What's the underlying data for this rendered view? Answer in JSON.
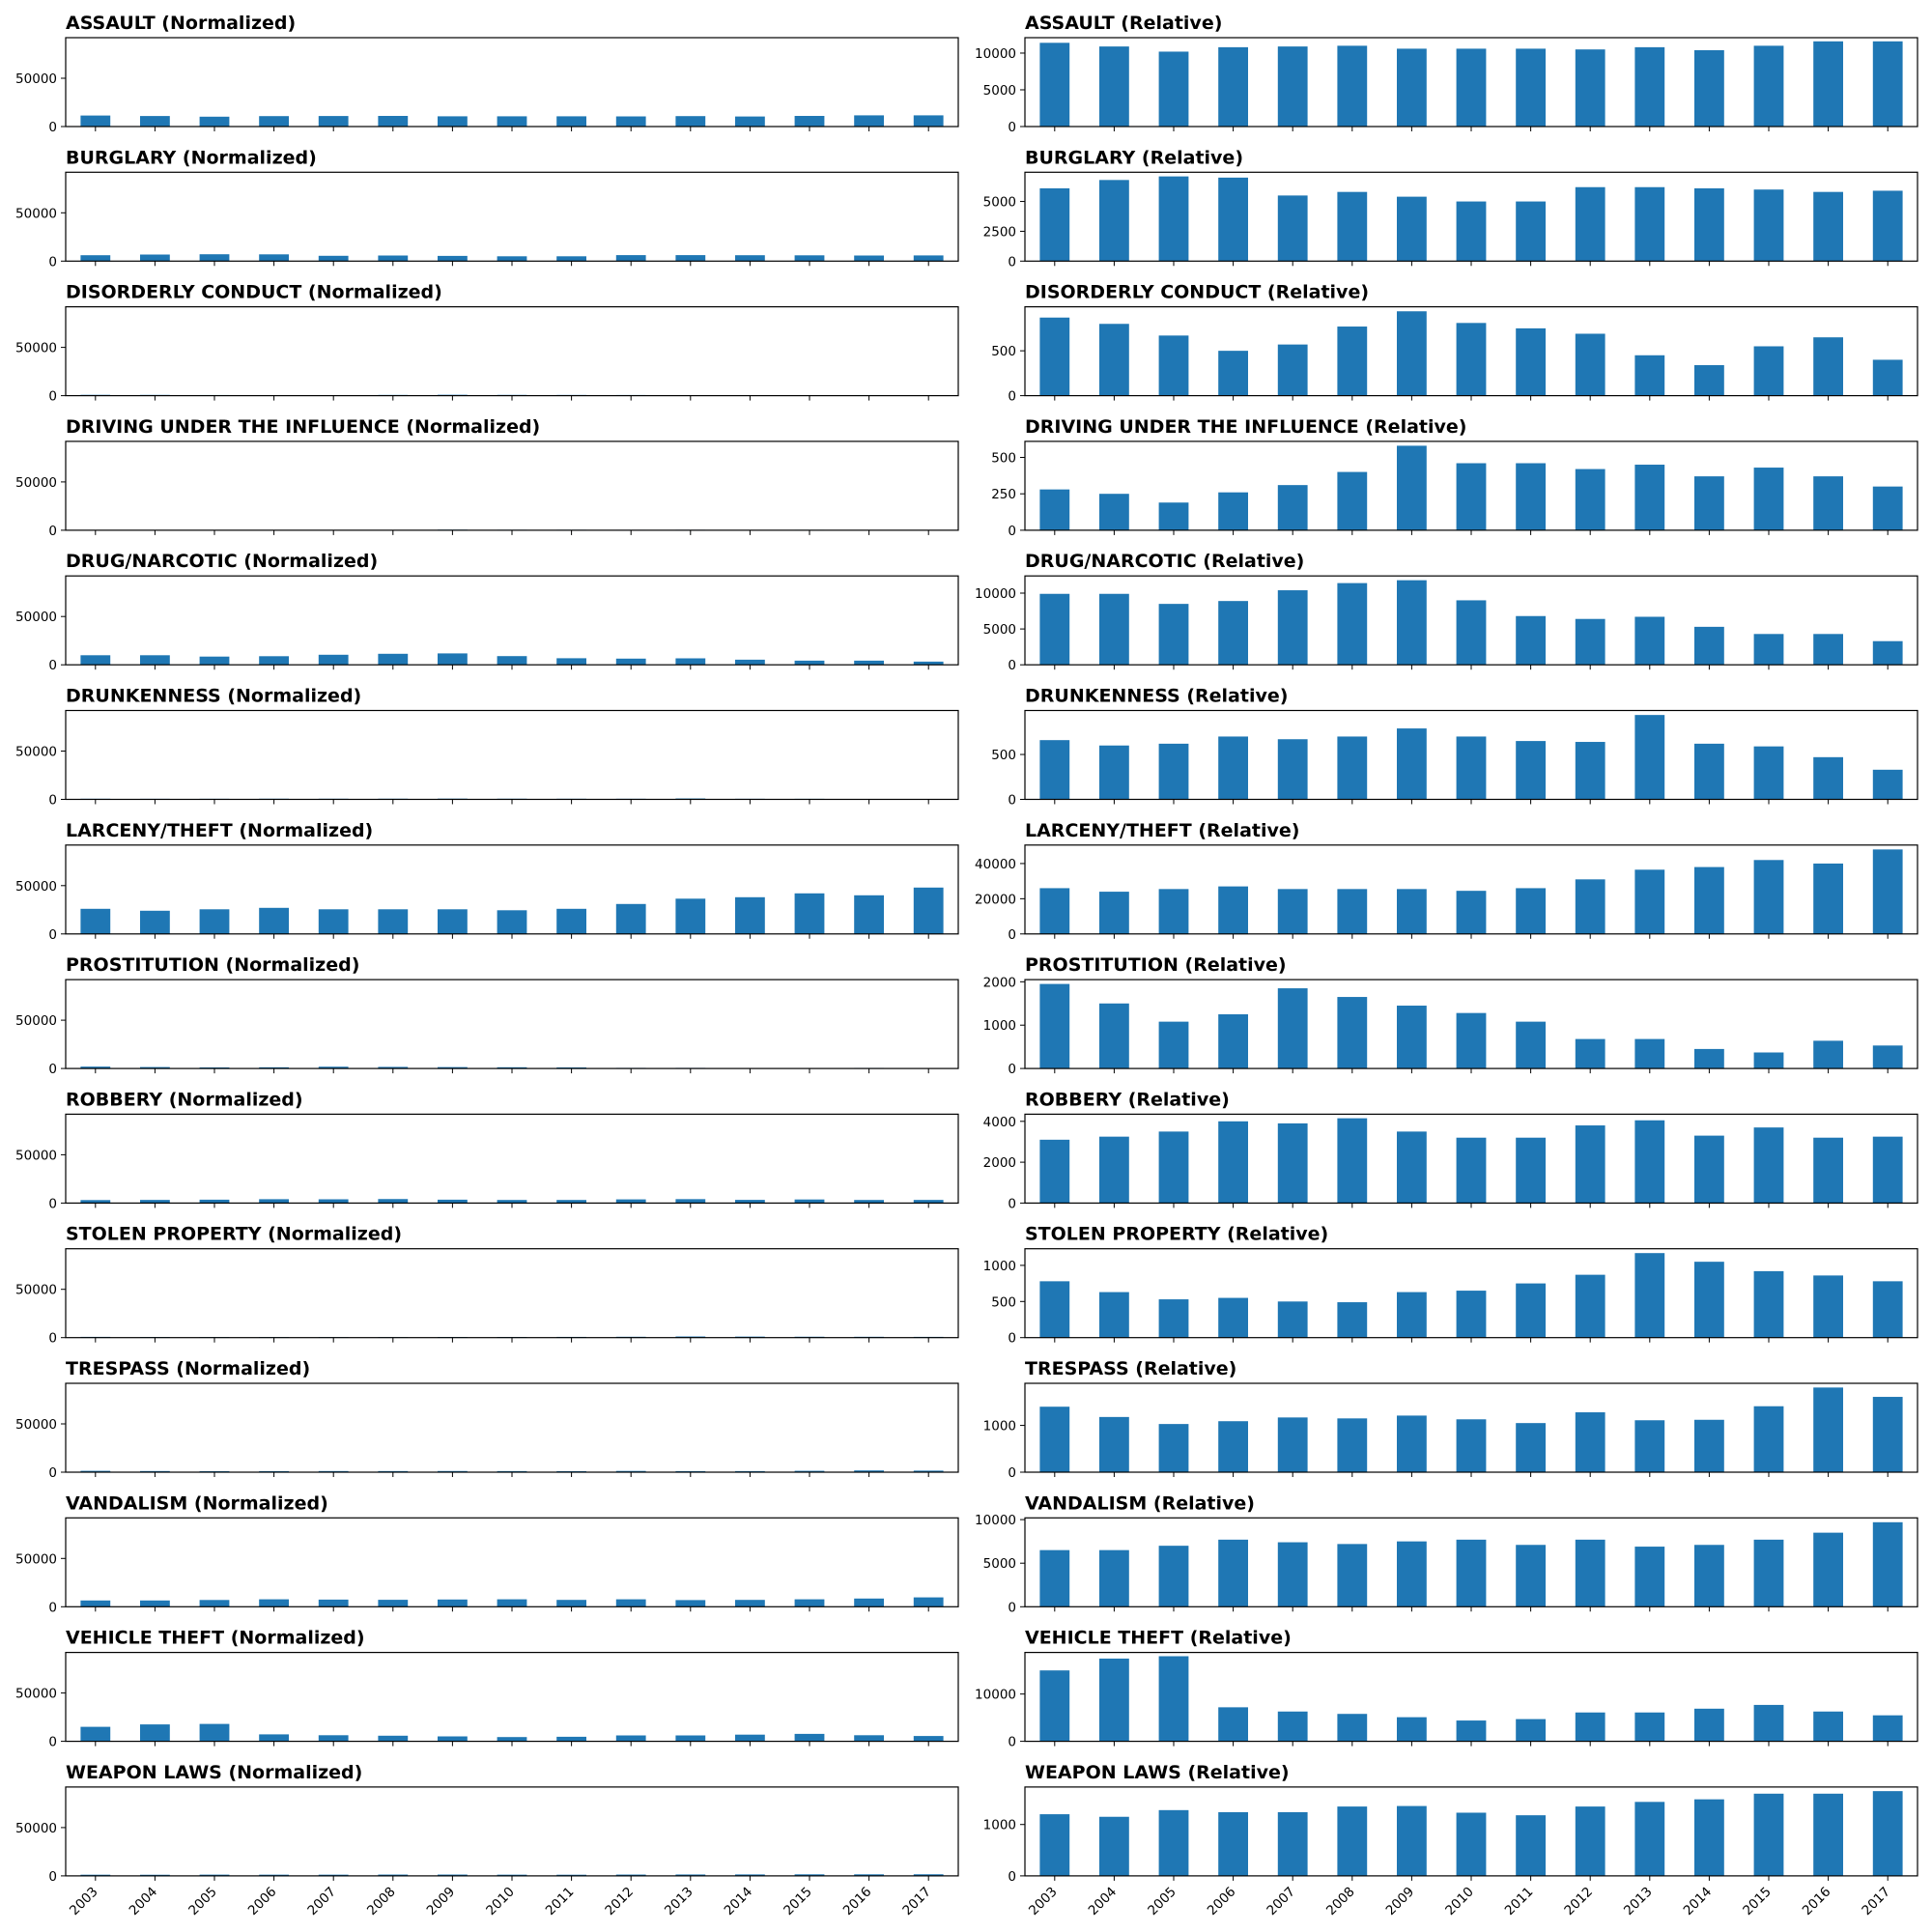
{
  "years": [
    "2003",
    "2004",
    "2005",
    "2006",
    "2007",
    "2008",
    "2009",
    "2010",
    "2011",
    "2012",
    "2013",
    "2014",
    "2015",
    "2016",
    "2017"
  ],
  "bar_color": "#1f77b4",
  "chart_data": [
    {
      "type": "bar",
      "title": "ASSAULT (Normalized)",
      "category": "ASSAULT",
      "mode": "normalized",
      "ylim": [
        0,
        92000
      ],
      "yticks": [
        0,
        50000
      ],
      "values": [
        11400,
        10900,
        10200,
        10800,
        10900,
        11000,
        10600,
        10600,
        10600,
        10500,
        10800,
        10400,
        11000,
        11600,
        11600
      ]
    },
    {
      "type": "bar",
      "title": "ASSAULT (Relative)",
      "category": "ASSAULT",
      "mode": "relative",
      "ylim": [
        0,
        12100
      ],
      "yticks": [
        0,
        5000,
        10000
      ],
      "values": [
        11400,
        10900,
        10200,
        10800,
        10900,
        11000,
        10600,
        10600,
        10600,
        10500,
        10800,
        10400,
        11000,
        11600,
        11600
      ]
    },
    {
      "type": "bar",
      "title": "BURGLARY (Normalized)",
      "category": "BURGLARY",
      "mode": "normalized",
      "ylim": [
        0,
        92000
      ],
      "yticks": [
        0,
        50000
      ],
      "values": [
        6100,
        6800,
        7100,
        7000,
        5500,
        5800,
        5400,
        5000,
        5000,
        6200,
        6200,
        6100,
        6000,
        5800,
        5900
      ]
    },
    {
      "type": "bar",
      "title": "BURGLARY (Relative)",
      "category": "BURGLARY",
      "mode": "relative",
      "ylim": [
        0,
        7450
      ],
      "yticks": [
        0,
        2500,
        5000
      ],
      "values": [
        6100,
        6800,
        7100,
        7000,
        5500,
        5800,
        5400,
        5000,
        5000,
        6200,
        6200,
        6100,
        6000,
        5800,
        5900
      ]
    },
    {
      "type": "bar",
      "title": "DISORDERLY CONDUCT (Normalized)",
      "category": "DISORDERLY CONDUCT",
      "mode": "normalized",
      "ylim": [
        0,
        92000
      ],
      "yticks": [
        0,
        50000
      ],
      "values": [
        870,
        800,
        670,
        500,
        570,
        770,
        940,
        810,
        750,
        690,
        450,
        340,
        550,
        650,
        400
      ]
    },
    {
      "type": "bar",
      "title": "DISORDERLY CONDUCT (Relative)",
      "category": "DISORDERLY CONDUCT",
      "mode": "relative",
      "ylim": [
        0,
        990
      ],
      "yticks": [
        0,
        500
      ],
      "values": [
        870,
        800,
        670,
        500,
        570,
        770,
        940,
        810,
        750,
        690,
        450,
        340,
        550,
        650,
        400
      ]
    },
    {
      "type": "bar",
      "title": "DRIVING UNDER THE INFLUENCE (Normalized)",
      "category": "DRIVING UNDER THE INFLUENCE",
      "mode": "normalized",
      "ylim": [
        0,
        92000
      ],
      "yticks": [
        0,
        50000
      ],
      "values": [
        280,
        250,
        190,
        260,
        310,
        400,
        580,
        460,
        460,
        420,
        450,
        370,
        430,
        370,
        300
      ]
    },
    {
      "type": "bar",
      "title": "DRIVING UNDER THE INFLUENCE (Relative)",
      "category": "DRIVING UNDER THE INFLUENCE",
      "mode": "relative",
      "ylim": [
        0,
        610
      ],
      "yticks": [
        0,
        250,
        500
      ],
      "values": [
        280,
        250,
        190,
        260,
        310,
        400,
        580,
        460,
        460,
        420,
        450,
        370,
        430,
        370,
        300
      ]
    },
    {
      "type": "bar",
      "title": "DRUG/NARCOTIC (Normalized)",
      "category": "DRUG/NARCOTIC",
      "mode": "normalized",
      "ylim": [
        0,
        92000
      ],
      "yticks": [
        0,
        50000
      ],
      "values": [
        9900,
        9900,
        8500,
        8900,
        10400,
        11400,
        11800,
        9000,
        6800,
        6400,
        6700,
        5300,
        4300,
        4300,
        3300
      ]
    },
    {
      "type": "bar",
      "title": "DRUG/NARCOTIC (Relative)",
      "category": "DRUG/NARCOTIC",
      "mode": "relative",
      "ylim": [
        0,
        12400
      ],
      "yticks": [
        0,
        5000,
        10000
      ],
      "values": [
        9900,
        9900,
        8500,
        8900,
        10400,
        11400,
        11800,
        9000,
        6800,
        6400,
        6700,
        5300,
        4300,
        4300,
        3300
      ]
    },
    {
      "type": "bar",
      "title": "DRUNKENNESS (Normalized)",
      "category": "DRUNKENNESS",
      "mode": "normalized",
      "ylim": [
        0,
        92000
      ],
      "yticks": [
        0,
        50000
      ],
      "values": [
        660,
        600,
        620,
        700,
        670,
        700,
        790,
        700,
        650,
        640,
        940,
        620,
        590,
        470,
        330
      ]
    },
    {
      "type": "bar",
      "title": "DRUNKENNESS (Relative)",
      "category": "DRUNKENNESS",
      "mode": "relative",
      "ylim": [
        0,
        990
      ],
      "yticks": [
        0,
        500
      ],
      "values": [
        660,
        600,
        620,
        700,
        670,
        700,
        790,
        700,
        650,
        640,
        940,
        620,
        590,
        470,
        330
      ]
    },
    {
      "type": "bar",
      "title": "LARCENY/THEFT (Normalized)",
      "category": "LARCENY/THEFT",
      "mode": "normalized",
      "ylim": [
        0,
        92000
      ],
      "yticks": [
        0,
        50000
      ],
      "values": [
        26000,
        24000,
        25500,
        27000,
        25500,
        25500,
        25500,
        24500,
        26000,
        31000,
        36500,
        38000,
        42000,
        40000,
        48000
      ]
    },
    {
      "type": "bar",
      "title": "LARCENY/THEFT (Relative)",
      "category": "LARCENY/THEFT",
      "mode": "relative",
      "ylim": [
        0,
        50500
      ],
      "yticks": [
        0,
        20000,
        40000
      ],
      "values": [
        26000,
        24000,
        25500,
        27000,
        25500,
        25500,
        25500,
        24500,
        26000,
        31000,
        36500,
        38000,
        42000,
        40000,
        48000
      ]
    },
    {
      "type": "bar",
      "title": "PROSTITUTION (Normalized)",
      "category": "PROSTITUTION",
      "mode": "normalized",
      "ylim": [
        0,
        92000
      ],
      "yticks": [
        0,
        50000
      ],
      "values": [
        1950,
        1500,
        1080,
        1250,
        1850,
        1650,
        1450,
        1280,
        1080,
        680,
        680,
        450,
        370,
        640,
        530
      ]
    },
    {
      "type": "bar",
      "title": "PROSTITUTION (Relative)",
      "category": "PROSTITUTION",
      "mode": "relative",
      "ylim": [
        0,
        2050
      ],
      "yticks": [
        0,
        1000,
        2000
      ],
      "values": [
        1950,
        1500,
        1080,
        1250,
        1850,
        1650,
        1450,
        1280,
        1080,
        680,
        680,
        450,
        370,
        640,
        530
      ]
    },
    {
      "type": "bar",
      "title": "ROBBERY (Normalized)",
      "category": "ROBBERY",
      "mode": "normalized",
      "ylim": [
        0,
        92000
      ],
      "yticks": [
        0,
        50000
      ],
      "values": [
        3100,
        3250,
        3500,
        4000,
        3900,
        4150,
        3500,
        3200,
        3200,
        3800,
        4050,
        3300,
        3700,
        3200,
        3250
      ]
    },
    {
      "type": "bar",
      "title": "ROBBERY (Relative)",
      "category": "ROBBERY",
      "mode": "relative",
      "ylim": [
        0,
        4350
      ],
      "yticks": [
        0,
        2000,
        4000
      ],
      "values": [
        3100,
        3250,
        3500,
        4000,
        3900,
        4150,
        3500,
        3200,
        3200,
        3800,
        4050,
        3300,
        3700,
        3200,
        3250
      ]
    },
    {
      "type": "bar",
      "title": "STOLEN PROPERTY (Normalized)",
      "category": "STOLEN PROPERTY",
      "mode": "normalized",
      "ylim": [
        0,
        92000
      ],
      "yticks": [
        0,
        50000
      ],
      "values": [
        780,
        630,
        530,
        550,
        500,
        490,
        630,
        650,
        750,
        870,
        1170,
        1050,
        920,
        860,
        780
      ]
    },
    {
      "type": "bar",
      "title": "STOLEN PROPERTY (Relative)",
      "category": "STOLEN PROPERTY",
      "mode": "relative",
      "ylim": [
        0,
        1230
      ],
      "yticks": [
        0,
        500,
        1000
      ],
      "values": [
        780,
        630,
        530,
        550,
        500,
        490,
        630,
        650,
        750,
        870,
        1170,
        1050,
        920,
        860,
        780
      ]
    },
    {
      "type": "bar",
      "title": "TRESPASS (Normalized)",
      "category": "TRESPASS",
      "mode": "normalized",
      "ylim": [
        0,
        92000
      ],
      "yticks": [
        0,
        50000
      ],
      "values": [
        1400,
        1180,
        1030,
        1090,
        1170,
        1150,
        1210,
        1130,
        1050,
        1280,
        1110,
        1120,
        1410,
        1810,
        1610
      ]
    },
    {
      "type": "bar",
      "title": "TRESPASS (Relative)",
      "category": "TRESPASS",
      "mode": "relative",
      "ylim": [
        0,
        1900
      ],
      "yticks": [
        0,
        1000
      ],
      "values": [
        1400,
        1180,
        1030,
        1090,
        1170,
        1150,
        1210,
        1130,
        1050,
        1280,
        1110,
        1120,
        1410,
        1810,
        1610
      ]
    },
    {
      "type": "bar",
      "title": "VANDALISM (Normalized)",
      "category": "VANDALISM",
      "mode": "normalized",
      "ylim": [
        0,
        92000
      ],
      "yticks": [
        0,
        50000
      ],
      "values": [
        6500,
        6500,
        7000,
        7700,
        7400,
        7200,
        7500,
        7700,
        7100,
        7700,
        6900,
        7100,
        7700,
        8500,
        9700
      ]
    },
    {
      "type": "bar",
      "title": "VANDALISM (Relative)",
      "category": "VANDALISM",
      "mode": "relative",
      "ylim": [
        0,
        10200
      ],
      "yticks": [
        0,
        5000,
        10000
      ],
      "values": [
        6500,
        6500,
        7000,
        7700,
        7400,
        7200,
        7500,
        7700,
        7100,
        7700,
        6900,
        7100,
        7700,
        8500,
        9700
      ]
    },
    {
      "type": "bar",
      "title": "VEHICLE THEFT (Normalized)",
      "category": "VEHICLE THEFT",
      "mode": "normalized",
      "ylim": [
        0,
        92000
      ],
      "yticks": [
        0,
        50000
      ],
      "values": [
        15000,
        17500,
        18000,
        7200,
        6300,
        5800,
        5100,
        4400,
        4700,
        6100,
        6100,
        6900,
        7700,
        6300,
        5500
      ]
    },
    {
      "type": "bar",
      "title": "VEHICLE THEFT (Relative)",
      "category": "VEHICLE THEFT",
      "mode": "relative",
      "ylim": [
        0,
        18800
      ],
      "yticks": [
        0,
        10000
      ],
      "values": [
        15000,
        17500,
        18000,
        7200,
        6300,
        5800,
        5100,
        4400,
        4700,
        6100,
        6100,
        6900,
        7700,
        6300,
        5500
      ]
    },
    {
      "type": "bar",
      "title": "WEAPON LAWS (Normalized)",
      "category": "WEAPON LAWS",
      "mode": "normalized",
      "ylim": [
        0,
        92000
      ],
      "yticks": [
        0,
        50000
      ],
      "values": [
        1200,
        1150,
        1280,
        1240,
        1240,
        1350,
        1360,
        1230,
        1180,
        1350,
        1440,
        1490,
        1600,
        1600,
        1650
      ]
    },
    {
      "type": "bar",
      "title": "WEAPON LAWS (Relative)",
      "category": "WEAPON LAWS",
      "mode": "relative",
      "ylim": [
        0,
        1730
      ],
      "yticks": [
        0,
        1000
      ],
      "values": [
        1200,
        1150,
        1280,
        1240,
        1240,
        1350,
        1360,
        1230,
        1180,
        1350,
        1440,
        1490,
        1600,
        1600,
        1650
      ]
    }
  ]
}
